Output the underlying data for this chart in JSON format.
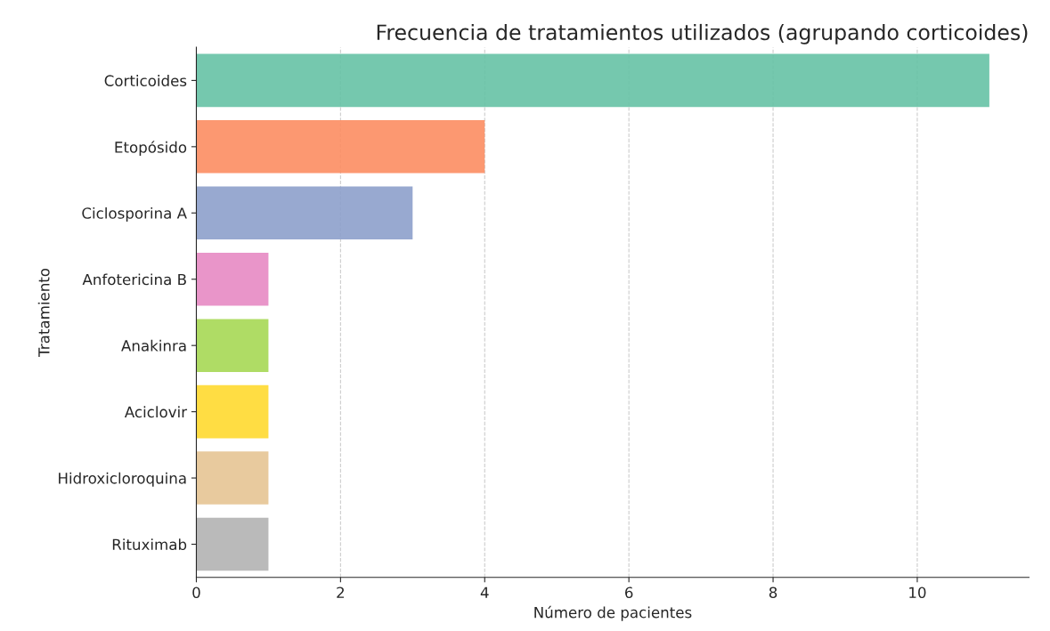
{
  "chart_data": {
    "type": "bar",
    "orientation": "horizontal",
    "title": "Frecuencia de tratamientos utilizados (agrupando corticoides)",
    "xlabel": "Número de pacientes",
    "ylabel": "Tratamiento",
    "categories": [
      "Corticoides",
      "Etopósido",
      "Ciclosporina A",
      "Anfotericina B",
      "Anakinra",
      "Aciclovir",
      "Hidroxicloroquina",
      "Rituximab"
    ],
    "values": [
      11,
      4,
      3,
      1,
      1,
      1,
      1,
      1
    ],
    "colors": [
      "#66c2a5",
      "#fc8d62",
      "#8da0cb",
      "#e78ac3",
      "#a6d854",
      "#ffd92f",
      "#e5c494",
      "#b3b3b3"
    ],
    "xlim": [
      0,
      11.55
    ],
    "xticks": [
      0,
      2,
      4,
      6,
      8,
      10
    ],
    "grid": "x",
    "legend": false
  }
}
